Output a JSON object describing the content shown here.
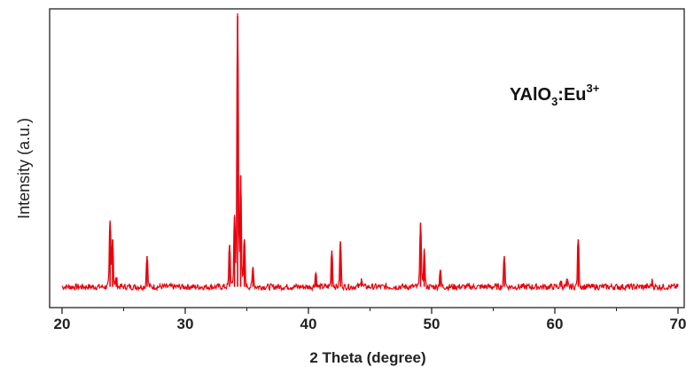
{
  "chart_data": {
    "type": "line",
    "title": "",
    "xlabel": "2 Theta (degree)",
    "ylabel": "Intensity (a.u.)",
    "xlim": [
      20,
      70
    ],
    "ylim": [
      0,
      100
    ],
    "xticks": [
      20,
      30,
      40,
      50,
      60,
      70
    ],
    "y_tick_labels_shown": false,
    "grid": false,
    "annotation": {
      "base": "YAlO",
      "sub": "3",
      "mid": ":Eu",
      "sup": "3+"
    },
    "series": [
      {
        "color": "#e8000b",
        "baseline": 3,
        "x": [
          23.9,
          24.1,
          24.4,
          26.9,
          33.6,
          34.0,
          34.25,
          34.5,
          34.8,
          35.5,
          40.6,
          41.9,
          42.6,
          44.3,
          49.1,
          49.4,
          50.7,
          55.9,
          60.5,
          61.0,
          61.9,
          67.9
        ],
        "y": [
          26,
          20,
          6,
          14,
          18,
          28,
          100,
          43,
          20,
          10,
          8,
          16,
          19,
          6,
          26,
          16,
          9,
          14,
          5,
          5,
          20,
          5
        ]
      }
    ]
  }
}
